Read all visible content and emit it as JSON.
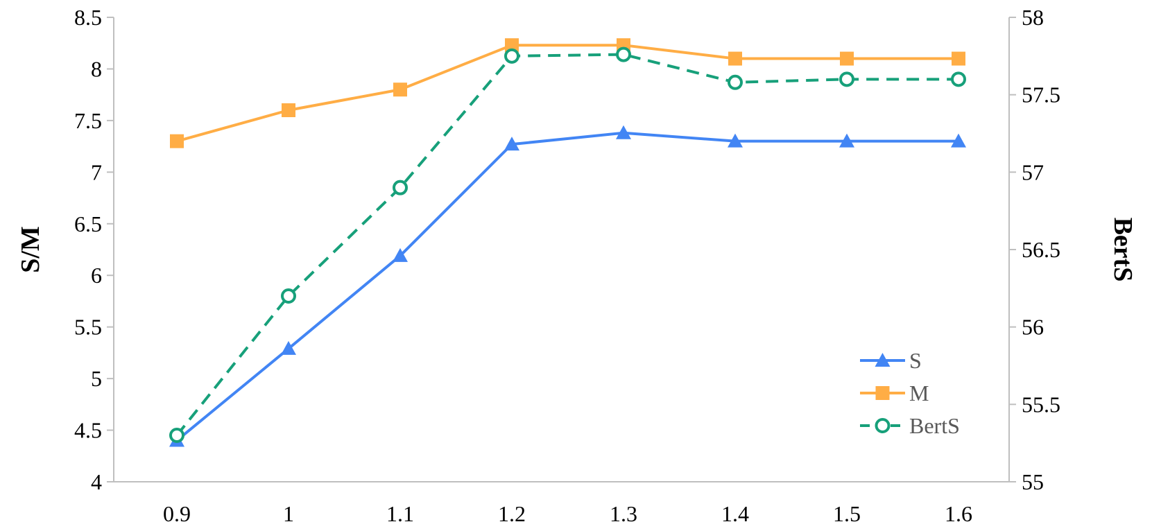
{
  "chart_data": {
    "type": "line",
    "title": "",
    "xlabel": "",
    "ylabel": "S/M",
    "y2label": "BertS",
    "x": [
      0.9,
      1,
      1.1,
      1.2,
      1.3,
      1.4,
      1.5,
      1.6
    ],
    "x_tick_labels": [
      "0.9",
      "1",
      "1.1",
      "1.2",
      "1.3",
      "1.4",
      "1.5",
      "1.6"
    ],
    "ylim": [
      4,
      8.5
    ],
    "y_ticks": [
      "4",
      "4.5",
      "5",
      "5.5",
      "6",
      "6.5",
      "7",
      "7.5",
      "8",
      "8.5"
    ],
    "y2lim": [
      55,
      58
    ],
    "y2_ticks": [
      "55",
      "55.5",
      "56",
      "56.5",
      "57",
      "57.5",
      "58"
    ],
    "grid": false,
    "legend_position": "bottom-right",
    "series": [
      {
        "name": "S",
        "axis": "left",
        "color": "#4285f4",
        "marker": "triangle",
        "line_style": "solid",
        "values": [
          4.4,
          5.29,
          6.19,
          7.27,
          7.38,
          7.3,
          7.3,
          7.3
        ]
      },
      {
        "name": "M",
        "axis": "left",
        "color": "#ffad45",
        "marker": "square",
        "line_style": "solid",
        "values": [
          7.3,
          7.6,
          7.8,
          8.23,
          8.23,
          8.1,
          8.1,
          8.1
        ]
      },
      {
        "name": "BertS",
        "axis": "right",
        "color": "#17a07a",
        "marker": "circle-open",
        "line_style": "dashed",
        "values": [
          55.3,
          56.2,
          56.9,
          57.75,
          57.76,
          57.58,
          57.6,
          57.6
        ]
      }
    ]
  }
}
